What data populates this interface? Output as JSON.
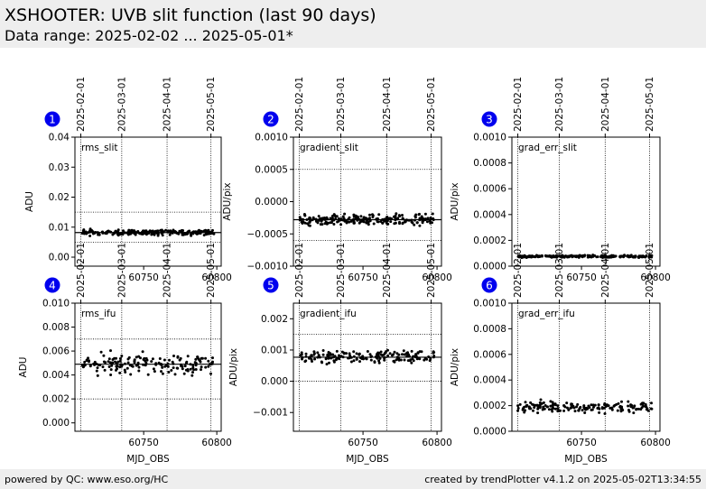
{
  "header": {
    "title": "XSHOOTER: UVB slit function (last 90 days)",
    "subtitle": "Data range: 2025-02-02 ... 2025-05-01*"
  },
  "footer": {
    "left": "powered by QC: www.eso.org/HC",
    "right": "created by trendPlotter v4.1.2 on 2025-05-02T13:34:55"
  },
  "colors": {
    "badge": "#0000ee",
    "points": "#000000",
    "frame": "#000000"
  },
  "date_ticks": {
    "labels": [
      "2025-02-01",
      "2025-03-01",
      "2025-04-01",
      "2025-05-01"
    ],
    "mjd": [
      60707,
      60735,
      60766,
      60796
    ]
  },
  "chart_data": [
    {
      "type": "scatter",
      "badge": "1",
      "label": "rms_slit",
      "ylabel": "ADU",
      "xlabel": "",
      "xlim": [
        60703,
        60803
      ],
      "ylim": [
        -0.003,
        0.04
      ],
      "yticks": [
        0.0,
        0.01,
        0.02,
        0.03,
        0.04
      ],
      "ytick_labels": [
        "0.00",
        "0.01",
        "0.02",
        "0.03",
        "0.04"
      ],
      "xticks": [
        60750,
        60800
      ],
      "xtick_labels": [
        "60750",
        "60800"
      ],
      "median": 0.0082,
      "threshold_lines": [
        0.005,
        0.015
      ],
      "data": {
        "start": 60707,
        "end": 60798,
        "count": 220,
        "center": 0.0082,
        "spread": 0.0006,
        "seed": 11
      }
    },
    {
      "type": "scatter",
      "badge": "2",
      "label": "gradient_slit",
      "ylabel": "ADU/pix",
      "xlabel": "",
      "xlim": [
        60703,
        60803
      ],
      "ylim": [
        -0.001,
        0.001
      ],
      "yticks": [
        -0.001,
        -0.0005,
        0.0,
        0.0005,
        0.001
      ],
      "ytick_labels": [
        "−0.0010",
        "−0.0005",
        "0.0000",
        "0.0005",
        "0.0010"
      ],
      "xticks": [
        60750,
        60800
      ],
      "xtick_labels": [
        "60750",
        "60800"
      ],
      "median": -0.00028,
      "threshold_lines": [
        0.0005,
        -0.0006
      ],
      "data": {
        "start": 60707,
        "end": 60798,
        "count": 220,
        "center": -0.00028,
        "spread": 6e-05,
        "seed": 23
      }
    },
    {
      "type": "scatter",
      "badge": "3",
      "label": "grad_err_slit",
      "ylabel": "ADU/pix",
      "xlabel": "",
      "xlim": [
        60703,
        60803
      ],
      "ylim": [
        0.0,
        0.001
      ],
      "yticks": [
        0.0,
        0.0002,
        0.0004,
        0.0006,
        0.0008,
        0.001
      ],
      "ytick_labels": [
        "0.0000",
        "0.0002",
        "0.0004",
        "0.0006",
        "0.0008",
        "0.0010"
      ],
      "xticks": [
        60750,
        60800
      ],
      "xtick_labels": [
        "60750",
        "60800"
      ],
      "median": null,
      "threshold_lines": [],
      "data": {
        "start": 60707,
        "end": 60798,
        "count": 220,
        "center": 7.5e-05,
        "spread": 6e-06,
        "seed": 37
      }
    },
    {
      "type": "scatter",
      "badge": "4",
      "label": "rms_ifu",
      "ylabel": "ADU",
      "xlabel": "MJD_OBS",
      "xlim": [
        60703,
        60803
      ],
      "ylim": [
        -0.0007,
        0.01
      ],
      "yticks": [
        0.0,
        0.002,
        0.004,
        0.006,
        0.008,
        0.01
      ],
      "ytick_labels": [
        "0.000",
        "0.002",
        "0.004",
        "0.006",
        "0.008",
        "0.010"
      ],
      "xticks": [
        60750,
        60800
      ],
      "xtick_labels": [
        "60750",
        "60800"
      ],
      "median": 0.0049,
      "threshold_lines": [
        0.007,
        0.002
      ],
      "data": {
        "start": 60707,
        "end": 60798,
        "count": 170,
        "center": 0.0049,
        "spread": 0.0006,
        "seed": 41
      }
    },
    {
      "type": "scatter",
      "badge": "5",
      "label": "gradient_ifu",
      "ylabel": "ADU/pix",
      "xlabel": "MJD_OBS",
      "xlim": [
        60703,
        60803
      ],
      "ylim": [
        -0.0016,
        0.0025
      ],
      "yticks": [
        -0.001,
        0.0,
        0.001,
        0.002
      ],
      "ytick_labels": [
        "−0.001",
        "0.000",
        "0.001",
        "0.002"
      ],
      "xticks": [
        60750,
        60800
      ],
      "xtick_labels": [
        "60750",
        "60800"
      ],
      "median": 0.00077,
      "threshold_lines": [
        0.0015,
        0.0
      ],
      "data": {
        "start": 60707,
        "end": 60798,
        "count": 170,
        "center": 0.0008,
        "spread": 0.00015,
        "seed": 53
      }
    },
    {
      "type": "scatter",
      "badge": "6",
      "label": "grad_err_ifu",
      "ylabel": "ADU/pix",
      "xlabel": "MJD_OBS",
      "xlim": [
        60703,
        60803
      ],
      "ylim": [
        0.0,
        0.001
      ],
      "yticks": [
        0.0,
        0.0002,
        0.0004,
        0.0006,
        0.0008,
        0.001
      ],
      "ytick_labels": [
        "0.0000",
        "0.0002",
        "0.0004",
        "0.0006",
        "0.0008",
        "0.0010"
      ],
      "xticks": [
        60750,
        60800
      ],
      "xtick_labels": [
        "60750",
        "60800"
      ],
      "median": null,
      "threshold_lines": [],
      "data": {
        "start": 60707,
        "end": 60798,
        "count": 170,
        "center": 0.00019,
        "spread": 3e-05,
        "seed": 67
      }
    }
  ]
}
